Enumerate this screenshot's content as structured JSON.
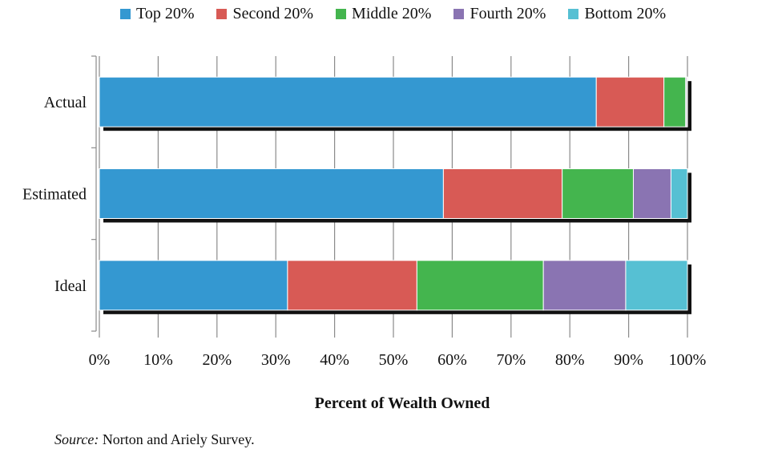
{
  "chart_data": {
    "type": "bar",
    "orientation": "horizontal",
    "stacked": true,
    "categories": [
      "Actual",
      "Estimated",
      "Ideal"
    ],
    "series": [
      {
        "name": "Top 20%",
        "color": "#3498d1",
        "values": [
          84.5,
          58.5,
          32
        ]
      },
      {
        "name": "Second 20%",
        "color": "#d85a55",
        "values": [
          11.5,
          20.2,
          22
        ]
      },
      {
        "name": "Middle 20%",
        "color": "#44b54e",
        "values": [
          3.7,
          12.1,
          21.5
        ]
      },
      {
        "name": "Fourth 20%",
        "color": "#8a74b2",
        "values": [
          0.2,
          6.4,
          14
        ]
      },
      {
        "name": "Bottom 20%",
        "color": "#56c0d3",
        "values": [
          0.1,
          2.8,
          10.5
        ]
      }
    ],
    "xlabel": "Percent of Wealth Owned",
    "xlim": [
      0,
      100
    ],
    "xticks": [
      "0%",
      "10%",
      "20%",
      "30%",
      "40%",
      "50%",
      "60%",
      "70%",
      "80%",
      "90%",
      "100%"
    ],
    "grid": true,
    "legend_position": "top"
  },
  "source": {
    "label": "Source:",
    "text": "Norton and Ariely Survey."
  }
}
